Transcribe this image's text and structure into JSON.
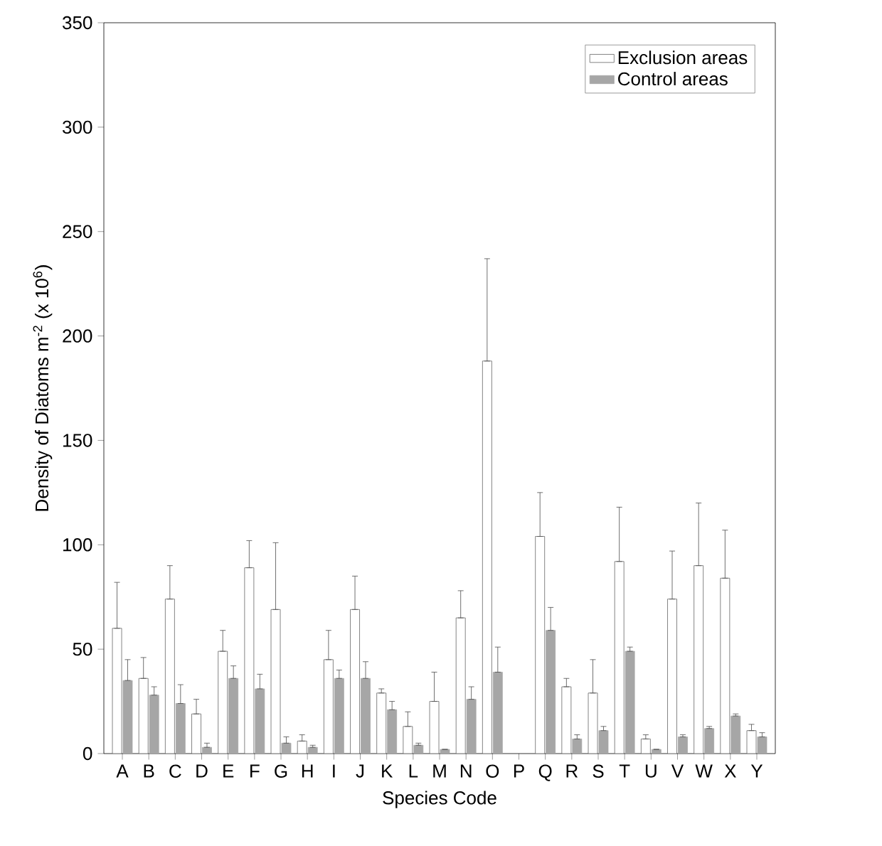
{
  "chart_data": {
    "type": "bar",
    "xlabel": "Species Code",
    "ylabel": "Density of Diatoms  m$^{-2}$ (x 10$^{6}$)",
    "categories": [
      "A",
      "B",
      "C",
      "D",
      "E",
      "F",
      "G",
      "H",
      "I",
      "J",
      "K",
      "L",
      "M",
      "N",
      "O",
      "P",
      "Q",
      "R",
      "S",
      "T",
      "U",
      "V",
      "W",
      "X",
      "Y"
    ],
    "series": [
      {
        "name": "Exclusion areas",
        "color": "#ffffff",
        "values": [
          60,
          36,
          74,
          19,
          49,
          89,
          69,
          6,
          45,
          69,
          29,
          13,
          25,
          65,
          188,
          null,
          104,
          32,
          29,
          92,
          7,
          74,
          90,
          84,
          11
        ],
        "errors": [
          [
            60,
            82
          ],
          [
            36,
            46
          ],
          [
            74,
            90
          ],
          [
            19,
            26
          ],
          [
            49,
            59
          ],
          [
            89,
            102
          ],
          [
            69,
            101
          ],
          [
            6,
            9
          ],
          [
            45,
            59
          ],
          [
            69,
            85
          ],
          [
            29,
            31
          ],
          [
            13,
            20
          ],
          [
            25,
            39
          ],
          [
            65,
            78
          ],
          [
            188,
            237
          ],
          null,
          [
            104,
            125
          ],
          [
            32,
            36
          ],
          [
            29,
            45
          ],
          [
            92,
            118
          ],
          [
            7,
            9
          ],
          [
            74,
            97
          ],
          [
            90,
            120
          ],
          [
            84,
            107
          ],
          [
            11,
            14
          ]
        ]
      },
      {
        "name": "Control areas",
        "color": "#a6a6a6",
        "values": [
          35,
          28,
          24,
          3,
          36,
          31,
          5,
          3,
          36,
          36,
          21,
          4,
          2,
          26,
          39,
          null,
          59,
          7,
          11,
          49,
          2,
          8,
          12,
          18,
          8
        ],
        "errors": [
          [
            35,
            45
          ],
          [
            28,
            32
          ],
          [
            24,
            33
          ],
          [
            3,
            5
          ],
          [
            36,
            42
          ],
          [
            31,
            38
          ],
          [
            5,
            8
          ],
          [
            3,
            4
          ],
          [
            36,
            40
          ],
          [
            36,
            44
          ],
          [
            21,
            25
          ],
          [
            4,
            5
          ],
          [
            2,
            2
          ],
          [
            26,
            32
          ],
          [
            39,
            51
          ],
          null,
          [
            59,
            70
          ],
          [
            7,
            9
          ],
          [
            11,
            13
          ],
          [
            49,
            51
          ],
          [
            2,
            2
          ],
          [
            8,
            9
          ],
          [
            12,
            13
          ],
          [
            18,
            19
          ],
          [
            8,
            10
          ]
        ]
      }
    ],
    "ylim": [
      0,
      350
    ],
    "yticks": [
      0,
      50,
      100,
      150,
      200,
      250,
      300,
      350
    ],
    "legend": "top right"
  }
}
